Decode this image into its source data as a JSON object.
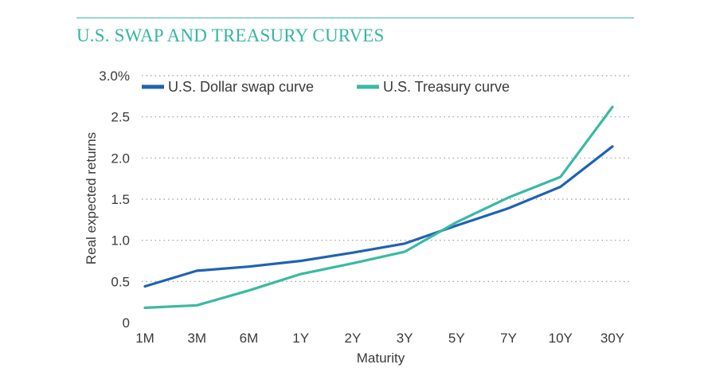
{
  "chart_data": {
    "type": "line",
    "title": "U.S. SWAP AND TREASURY CURVES",
    "xlabel": "Maturity",
    "ylabel": "Real expected returns",
    "categories": [
      "1M",
      "3M",
      "6M",
      "1Y",
      "2Y",
      "3Y",
      "5Y",
      "7Y",
      "10Y",
      "30Y"
    ],
    "yticks": [
      "0",
      "0.5",
      "1.0",
      "1.5",
      "2.0",
      "2.5",
      "3.0%"
    ],
    "ylim": [
      0,
      3.0
    ],
    "grid": "horizontal dotted",
    "legend_placement": "top-left",
    "series": [
      {
        "name": "U.S. Dollar swap curve",
        "color": "#1f62b3",
        "values": [
          0.44,
          0.63,
          0.68,
          0.75,
          0.85,
          0.96,
          1.18,
          1.39,
          1.65,
          2.14
        ]
      },
      {
        "name": "U.S. Treasury curve",
        "color": "#3ab9a2",
        "values": [
          0.18,
          0.21,
          0.39,
          0.59,
          0.72,
          0.86,
          1.22,
          1.52,
          1.77,
          2.62
        ]
      }
    ]
  }
}
